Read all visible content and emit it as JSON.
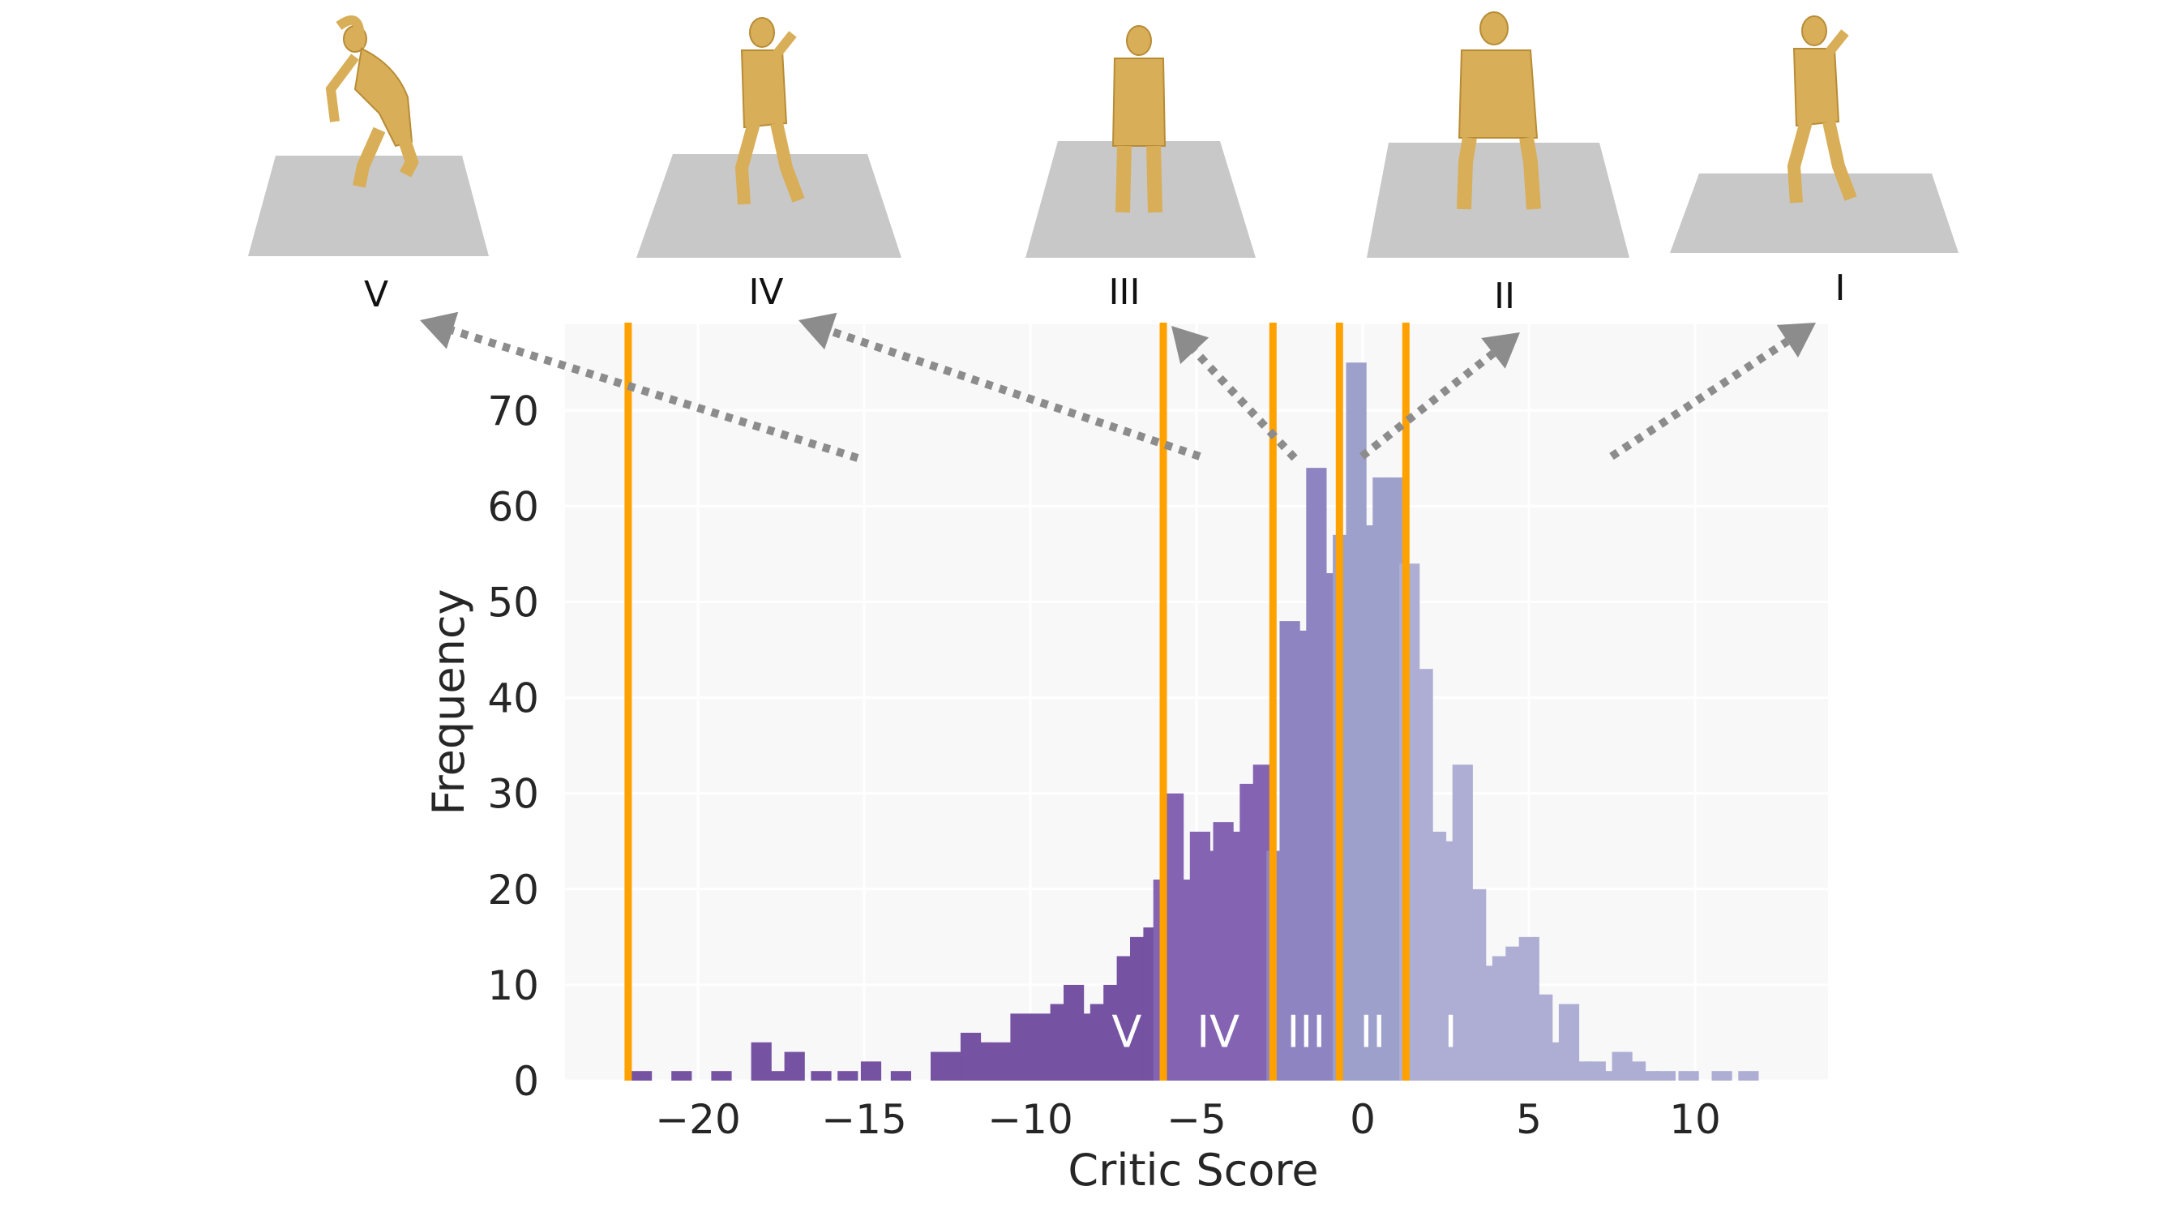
{
  "chart_data": {
    "type": "bar",
    "title": "",
    "xlabel": "Critic Score",
    "ylabel": "Frequency",
    "xlim": [
      -24,
      14
    ],
    "ylim": [
      0,
      79
    ],
    "x_ticks": [
      -20,
      -15,
      -10,
      -5,
      0,
      5,
      10
    ],
    "x_tick_labels": [
      "−20",
      "−15",
      "−10",
      "−5",
      "0",
      "5",
      "10"
    ],
    "y_ticks": [
      0,
      10,
      20,
      30,
      40,
      50,
      60,
      70
    ],
    "y_tick_labels": [
      "0",
      "10",
      "20",
      "30",
      "40",
      "50",
      "60",
      "70"
    ],
    "grid": true,
    "legend": "none",
    "bin_width": 0.6,
    "series": [
      {
        "values": [
          [
            -22.0,
            1
          ],
          [
            -20.8,
            1
          ],
          [
            -19.6,
            1
          ],
          [
            -18.4,
            4
          ],
          [
            -18.0,
            1
          ],
          [
            -17.4,
            3
          ],
          [
            -16.6,
            1
          ],
          [
            -15.8,
            1
          ],
          [
            -15.1,
            2
          ],
          [
            -14.2,
            1
          ],
          [
            -13.0,
            3
          ],
          [
            -12.4,
            3
          ],
          [
            -12.1,
            5
          ],
          [
            -11.8,
            4
          ],
          [
            -11.2,
            4
          ],
          [
            -10.6,
            7
          ],
          [
            -10.0,
            7
          ],
          [
            -9.4,
            8
          ],
          [
            -9.0,
            10
          ],
          [
            -8.6,
            7
          ],
          [
            -8.2,
            8
          ],
          [
            -7.8,
            10
          ],
          [
            -7.4,
            13
          ],
          [
            -7.0,
            15
          ],
          [
            -6.6,
            16
          ],
          [
            -6.3,
            21
          ],
          [
            -6.0,
            30
          ],
          [
            -5.6,
            21
          ],
          [
            -5.2,
            26
          ],
          [
            -4.9,
            24
          ],
          [
            -4.5,
            27
          ],
          [
            -4.1,
            26
          ],
          [
            -3.7,
            31
          ],
          [
            -3.3,
            33
          ],
          [
            -2.9,
            24
          ],
          [
            -2.5,
            48
          ],
          [
            -2.1,
            47
          ],
          [
            -1.7,
            64
          ],
          [
            -1.3,
            53
          ],
          [
            -0.9,
            57
          ],
          [
            -0.5,
            75
          ],
          [
            -0.1,
            58
          ],
          [
            0.3,
            63
          ],
          [
            0.7,
            63
          ],
          [
            1.1,
            54
          ],
          [
            1.5,
            43
          ],
          [
            1.9,
            26
          ],
          [
            2.3,
            25
          ],
          [
            2.7,
            33
          ],
          [
            3.1,
            20
          ],
          [
            3.5,
            12
          ],
          [
            3.9,
            13
          ],
          [
            4.3,
            14
          ],
          [
            4.7,
            15
          ],
          [
            5.1,
            9
          ],
          [
            5.5,
            4
          ],
          [
            5.9,
            8
          ],
          [
            6.3,
            2
          ],
          [
            6.7,
            2
          ],
          [
            7.1,
            1
          ],
          [
            7.5,
            3
          ],
          [
            7.9,
            2
          ],
          [
            8.3,
            1
          ],
          [
            8.8,
            1
          ],
          [
            9.5,
            1
          ],
          [
            10.5,
            1
          ],
          [
            11.3,
            1
          ]
        ]
      }
    ],
    "region_boundaries": [
      -22.1,
      -6.0,
      -2.7,
      -0.7,
      1.3
    ],
    "regions": [
      {
        "label": "V",
        "from": -22.1,
        "to": -6.0,
        "color": "#7553a2"
      },
      {
        "label": "IV",
        "from": -6.0,
        "to": -2.7,
        "color": "#8464b2"
      },
      {
        "label": "III",
        "from": -2.7,
        "to": -0.7,
        "color": "#8e84c1"
      },
      {
        "label": "II",
        "from": -0.7,
        "to": 1.3,
        "color": "#9da0cb"
      },
      {
        "label": "I",
        "from": 1.3,
        "to": 14,
        "color": "#aeaed5"
      }
    ],
    "colors": {
      "boundary_line": "#ffa200",
      "arrow": "#8c8c8c",
      "plot_background": "#f8f8f8",
      "grid": "#ffffff",
      "figure_body": "#d8ae58",
      "floor": "#c8c8c8"
    },
    "pose_labels": [
      "V",
      "IV",
      "III",
      "II",
      "I"
    ]
  }
}
